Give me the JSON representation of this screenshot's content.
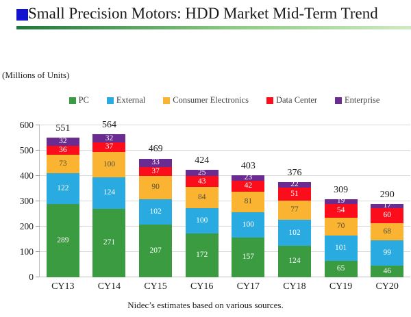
{
  "header": {
    "title": "Small Precision Motors: HDD Market Mid-Term Trend"
  },
  "units_label": "(Millions of Units)",
  "footer": {
    "note": "Nidec’s estimates based on various sources."
  },
  "colors": {
    "title_bullet": "#1414CE",
    "header_rule_start": "#1E783A",
    "header_rule_end": "#CFEAC2",
    "gridline": "#D9D9D9",
    "pc": "#3A9B41",
    "external": "#29ABE2",
    "consumer_electronics": "#FBB431",
    "data_center": "#FB0D1B",
    "enterprise": "#6B2C91"
  },
  "chart_data": {
    "type": "bar",
    "stacked": true,
    "title": "",
    "xlabel": "",
    "ylabel": "Millions of Units",
    "categories": [
      "CY13",
      "CY14",
      "CY15",
      "CY16",
      "CY17",
      "CY18",
      "CY19",
      "CY20"
    ],
    "series": [
      {
        "name": "PC",
        "color": "#3A9B41",
        "label_color": "#FFFFFF",
        "values": [
          289,
          271,
          207,
          172,
          157,
          124,
          65,
          46
        ]
      },
      {
        "name": "External",
        "color": "#29ABE2",
        "label_color": "#FFFFFF",
        "values": [
          122,
          124,
          102,
          100,
          100,
          102,
          101,
          99
        ]
      },
      {
        "name": "Consumer Electronics",
        "color": "#FBB431",
        "label_color": "#54503F",
        "values": [
          73,
          100,
          90,
          84,
          81,
          77,
          70,
          68
        ]
      },
      {
        "name": "Data Center",
        "color": "#FB0D1B",
        "label_color": "#FFFFFF",
        "values": [
          36,
          37,
          37,
          43,
          42,
          51,
          54,
          60
        ]
      },
      {
        "name": "Enterprise",
        "color": "#6B2C91",
        "label_color": "#FFFFFF",
        "values": [
          32,
          32,
          33,
          25,
          23,
          22,
          19,
          17
        ]
      }
    ],
    "totals": [
      551,
      564,
      469,
      424,
      403,
      376,
      309,
      290
    ],
    "ylim": [
      0,
      600
    ],
    "yticks": [
      0,
      100,
      200,
      300,
      400,
      500,
      600
    ],
    "grid": true,
    "legend_position": "top"
  }
}
